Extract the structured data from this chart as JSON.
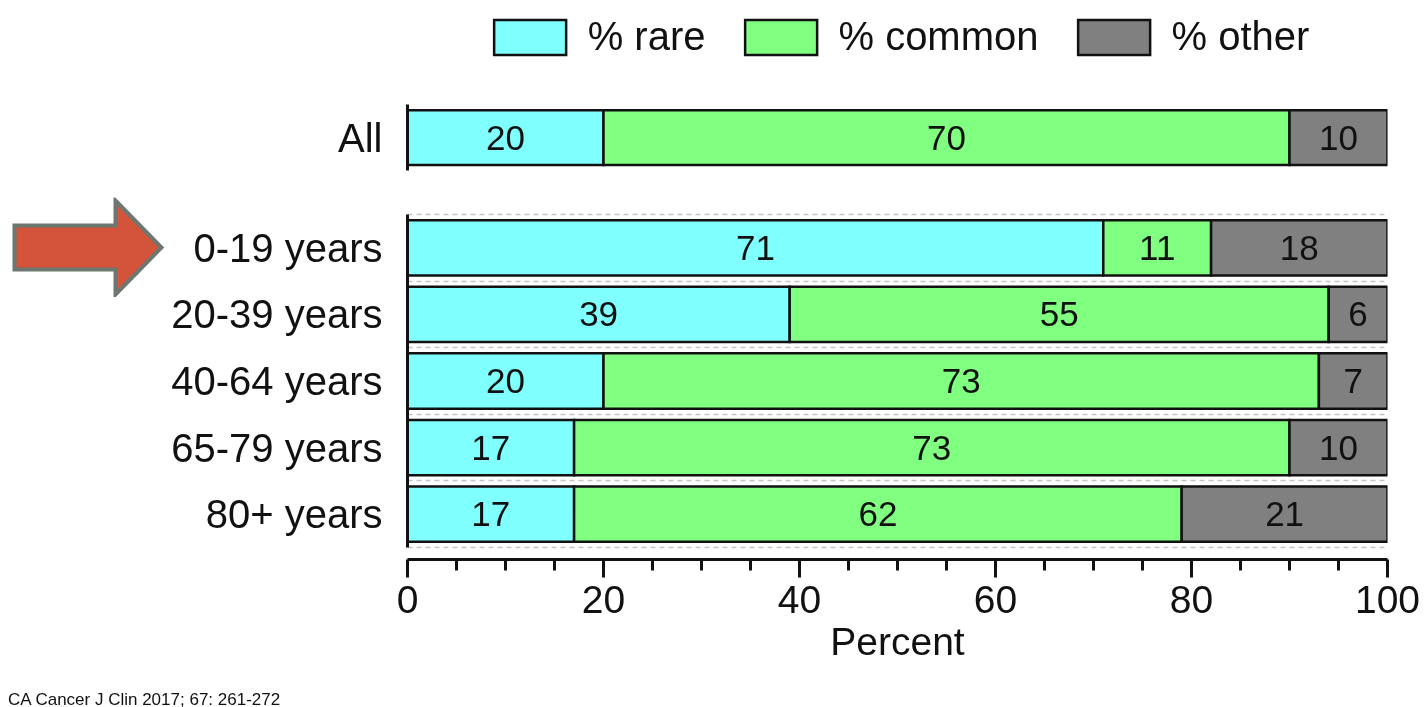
{
  "chart_data": [
    {
      "type": "bar",
      "orientation": "horizontal",
      "stacked": true,
      "categories": [
        "All"
      ],
      "series": [
        {
          "name": "% rare",
          "color": "#80ffff",
          "values": [
            20
          ]
        },
        {
          "name": "% common",
          "color": "#80ff80",
          "values": [
            70
          ]
        },
        {
          "name": "% other",
          "color": "#808080",
          "values": [
            10
          ]
        }
      ],
      "xlim": [
        0,
        100
      ],
      "tick_labels": "y",
      "legend": "top",
      "data_labels": true
    },
    {
      "type": "bar",
      "orientation": "horizontal",
      "stacked": true,
      "categories": [
        "0-19 years",
        "20-39 years",
        "40-64 years",
        "65-79 years",
        "80+ years"
      ],
      "series": [
        {
          "color": "#80ffff",
          "values": [
            71,
            39,
            20,
            17,
            17
          ]
        },
        {
          "color": "#80ff80",
          "values": [
            11,
            55,
            73,
            73,
            62
          ]
        },
        {
          "color": "#808080",
          "values": [
            18,
            6,
            7,
            10,
            21
          ]
        }
      ],
      "xlim": [
        0,
        100
      ],
      "xticks": [
        0,
        {
          "value": 5,
          "label": null
        },
        {
          "value": 10,
          "label": null
        },
        {
          "value": 15,
          "label": null
        },
        20,
        {
          "value": 25,
          "label": null
        },
        {
          "value": 30,
          "label": null
        },
        {
          "value": 35,
          "label": null
        },
        40,
        {
          "value": 45,
          "label": null
        },
        {
          "value": 50,
          "label": null
        },
        {
          "value": 55,
          "label": null
        },
        60,
        {
          "value": 65,
          "label": null
        },
        {
          "value": 70,
          "label": null
        },
        {
          "value": 75,
          "label": null
        },
        80,
        {
          "value": 85,
          "label": null
        },
        {
          "value": 90,
          "label": null
        },
        {
          "value": 95,
          "label": null
        },
        100
      ],
      "xlabel": "Percent",
      "grid": "y",
      "data_labels": true,
      "annotations": [
        "CA Cancer J Clin 2017; 67: 261-272"
      ]
    }
  ]
}
